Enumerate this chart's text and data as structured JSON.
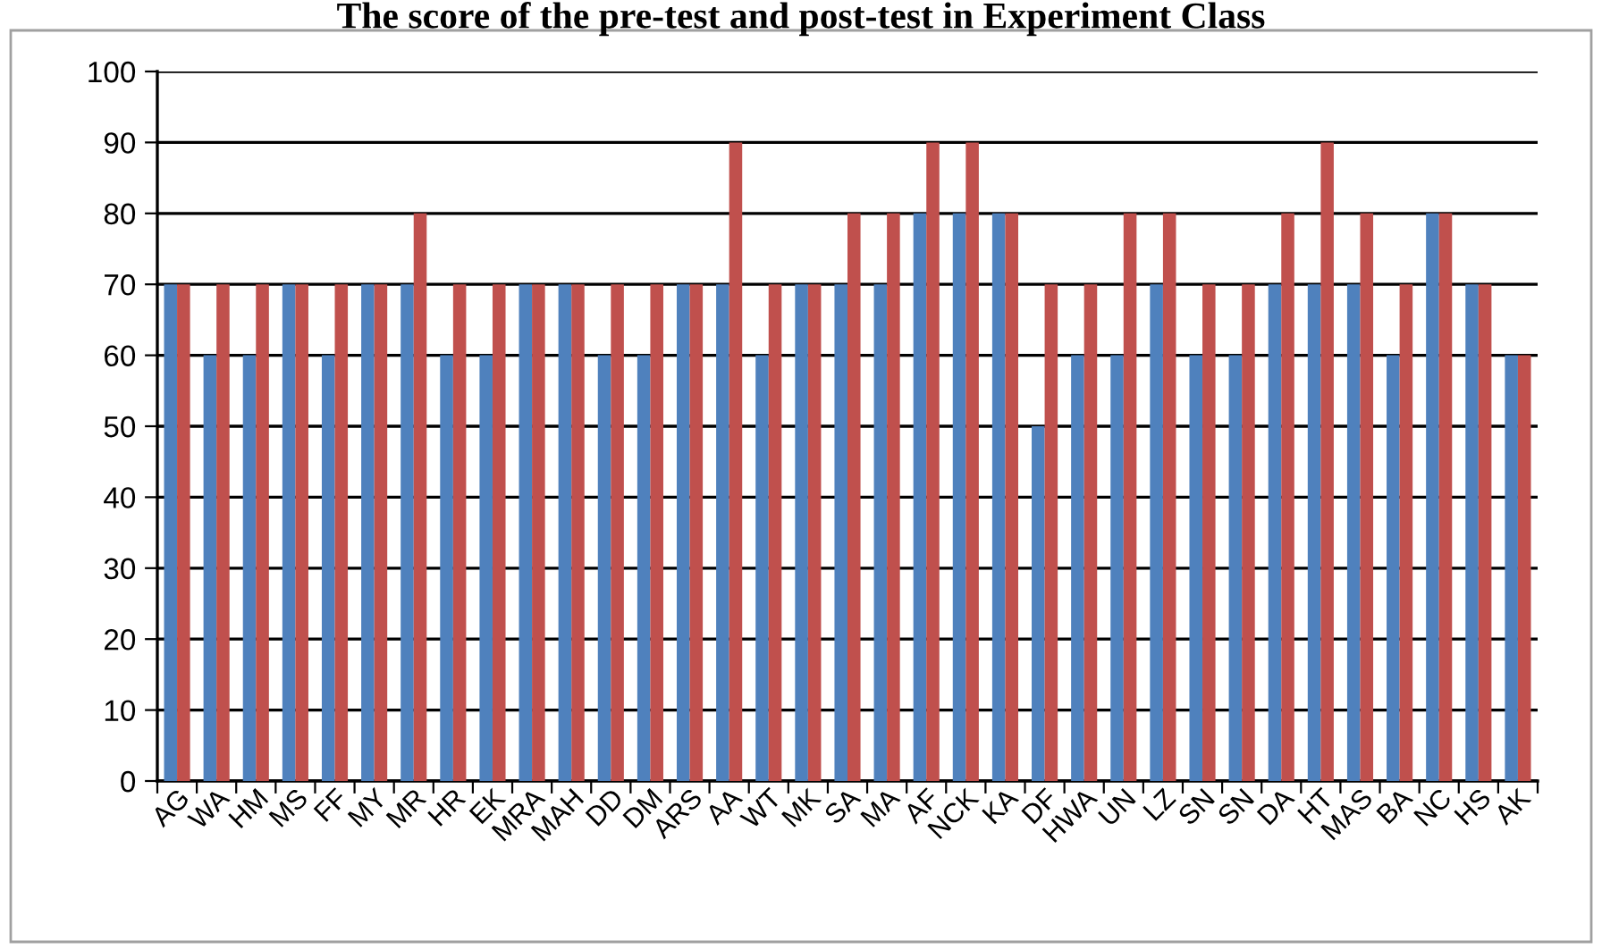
{
  "chart_data": {
    "type": "bar",
    "title": "The score of the pre-test and post-test in Experiment Class",
    "categories": [
      "AG",
      "WA",
      "HM",
      "MS",
      "FF",
      "MY",
      "MR",
      "HR",
      "EK",
      "MRA",
      "MAH",
      "DD",
      "DM",
      "ARS",
      "AA",
      "WT",
      "MK",
      "SA",
      "MA",
      "AF",
      "NCK",
      "KA",
      "DF",
      "HWA",
      "UN",
      "LZ",
      "SN",
      "SN",
      "DA",
      "HT",
      "MAS",
      "BA",
      "NC",
      "HS",
      "AK"
    ],
    "series": [
      {
        "color": "#4f81bd",
        "values": [
          70,
          60,
          60,
          70,
          60,
          70,
          70,
          60,
          60,
          70,
          70,
          60,
          60,
          70,
          70,
          60,
          70,
          70,
          70,
          80,
          80,
          80,
          50,
          60,
          60,
          70,
          60,
          60,
          70,
          70,
          70,
          60,
          80,
          70,
          60
        ]
      },
      {
        "color": "#c0504d",
        "values": [
          70,
          70,
          70,
          70,
          70,
          70,
          80,
          70,
          70,
          70,
          70,
          70,
          70,
          70,
          90,
          70,
          70,
          80,
          80,
          90,
          90,
          80,
          70,
          70,
          80,
          80,
          70,
          70,
          80,
          90,
          80,
          70,
          80,
          70,
          60
        ]
      }
    ],
    "ylim": [
      0,
      100
    ],
    "yticks": [
      0,
      10,
      20,
      30,
      40,
      50,
      60,
      70,
      80,
      90,
      100
    ],
    "grid": "y",
    "legend": false
  }
}
